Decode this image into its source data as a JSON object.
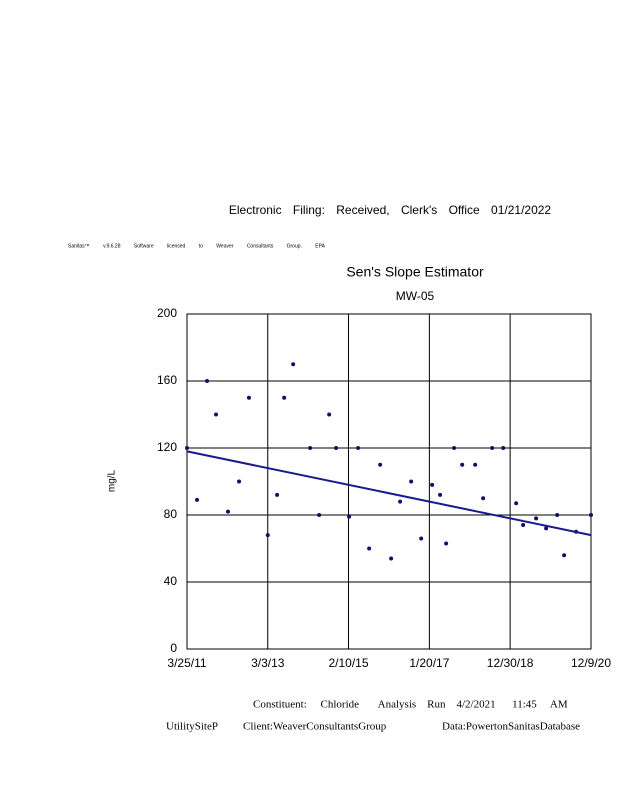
{
  "header": {
    "filing": "Electronic Filing: Received, Clerk's Office 01/21/2022",
    "software": "Sanitas™ v.9.6.28 Software licensed to Weaver Consultants Group. EPA"
  },
  "chart_data": {
    "type": "scatter",
    "title": "Sen's Slope Estimator",
    "subtitle": "MW-05",
    "y_label": "mg/L",
    "grid": true,
    "color": "#10106a",
    "xlim": [
      "2011-03-25",
      "2020-12-09"
    ],
    "xticks": [
      {
        "value": "2011-03-25",
        "label": "3/25/11"
      },
      {
        "value": "2013-03-03",
        "label": "3/3/13"
      },
      {
        "value": "2015-02-10",
        "label": "2/10/15"
      },
      {
        "value": "2017-01-20",
        "label": "1/20/17"
      },
      {
        "value": "2018-12-30",
        "label": "12/30/18"
      },
      {
        "value": "2020-12-09",
        "label": "12/9/20"
      }
    ],
    "ylim": [
      0,
      200
    ],
    "yticks": [
      0,
      40,
      80,
      120,
      160,
      200
    ],
    "x": [
      "2011-03-25",
      "2011-06-21",
      "2011-09-17",
      "2011-12-05",
      "2012-03-19",
      "2012-06-24",
      "2012-09-19",
      "2013-03-03",
      "2013-05-24",
      "2013-07-25",
      "2013-10-12",
      "2014-03-10",
      "2014-05-28",
      "2014-08-24",
      "2014-10-24",
      "2015-02-15",
      "2015-05-05",
      "2015-08-10",
      "2015-11-15",
      "2016-02-19",
      "2016-05-08",
      "2016-08-13",
      "2016-11-09",
      "2017-02-13",
      "2017-04-24",
      "2017-06-16",
      "2017-08-25",
      "2017-11-04",
      "2018-02-26",
      "2018-05-07",
      "2018-07-25",
      "2018-10-30",
      "2019-02-21",
      "2019-04-23",
      "2019-08-15",
      "2019-11-11",
      "2020-02-16",
      "2020-04-17",
      "2020-07-31",
      "2020-12-09"
    ],
    "values": [
      120,
      89,
      160,
      140,
      82,
      100,
      150,
      68,
      92,
      150,
      170,
      120,
      80,
      140,
      120,
      79,
      120,
      60,
      110,
      54,
      88,
      100,
      66,
      98,
      92,
      63,
      120,
      110,
      110,
      90,
      120,
      120,
      87,
      74,
      78,
      72,
      80,
      56,
      70,
      80
    ],
    "trend_line": {
      "x": [
        "2011-03-25",
        "2020-12-09"
      ],
      "values": [
        118,
        68
      ],
      "color": "#1a1a8c"
    }
  },
  "footer": {
    "constituent": "Constituent:     Chloride       Analysis    Run    4/2/2021      11:45     AM",
    "site": "UtilitySiteP",
    "client": "Client:WeaverConsultantsGroup",
    "data": "Data:PowertonSanitasDatabase"
  }
}
